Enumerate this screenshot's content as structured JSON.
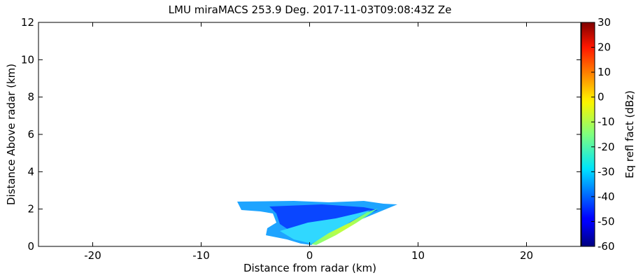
{
  "chart_data": {
    "type": "rhi",
    "title": "LMU miraMACS 253.9 Deg. 2017-11-03T09:08:43Z  Ze",
    "xlabel": "Distance from radar (km)",
    "ylabel": "Distance Above radar  (km)",
    "xlim": [
      -25,
      25
    ],
    "xticks": [
      -20,
      -10,
      0,
      10,
      20
    ],
    "ylim": [
      0,
      12
    ],
    "yticks": [
      0,
      2,
      4,
      6,
      8,
      10,
      12
    ],
    "colorbar": {
      "label": "Eq refl fact (dBz)",
      "lim": [
        -60,
        30
      ],
      "ticks": [
        -60,
        -50,
        -40,
        -30,
        -20,
        -10,
        0,
        10,
        20,
        30
      ],
      "colormap": "jet"
    }
  }
}
